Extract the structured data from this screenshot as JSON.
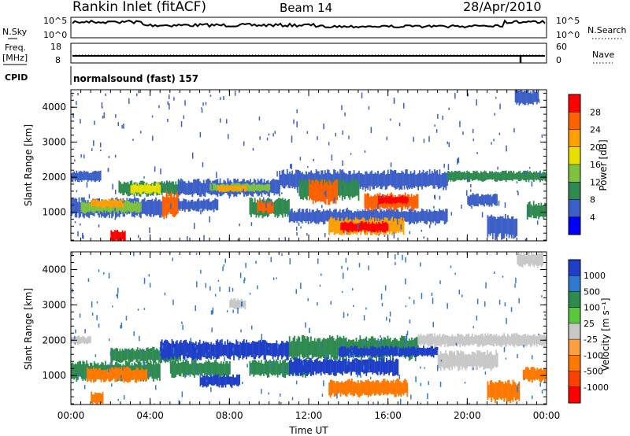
{
  "header": {
    "station": "Rankin Inlet (fitACF)",
    "beam": "Beam 14",
    "date": "28/Apr/2010"
  },
  "strips": {
    "nsky_label": "N.Sky",
    "nsearch_label": "N.Search",
    "nsky_top_tick": "10^5",
    "nsky_bottom_tick": "10^0",
    "freq_label_line1": "Freq.",
    "freq_label_line2": "[MHz]",
    "freq_ticks": [
      "18",
      "8"
    ],
    "nave_label": "Nave",
    "nave_ticks": [
      "60",
      "0"
    ],
    "cpid_label": "CPID",
    "cpid_text": "normalsound (fast) 157"
  },
  "chart_data": [
    {
      "type": "heatmap",
      "panel": "power",
      "ylabel": "Slant Range [km]",
      "xlabel": "",
      "ylim": [
        180,
        4500
      ],
      "yticks": [
        1000,
        2000,
        3000,
        4000
      ],
      "xlim_hours": [
        0,
        24
      ],
      "xticks": [
        "00:00",
        "04:00",
        "08:00",
        "12:00",
        "16:00",
        "20:00",
        "00:00"
      ],
      "colorbar": {
        "label": "Power [dB]",
        "ticks": [
          "28",
          "24",
          "20",
          "16",
          "12",
          "8",
          "4"
        ],
        "colors": [
          "#ff0000",
          "#ff6000",
          "#ff9f00",
          "#e8e000",
          "#7fc240",
          "#2f8a50",
          "#3c5fc8",
          "#0000ff"
        ]
      },
      "echo_regions": [
        {
          "t0": 0.0,
          "t1": 1.5,
          "r0": 1900,
          "r1": 2150,
          "color": "#3c5fc8"
        },
        {
          "t0": 0.0,
          "t1": 4.6,
          "r0": 900,
          "r1": 1350,
          "color": "#3c5fc8"
        },
        {
          "t0": 0.5,
          "t1": 3.5,
          "r0": 1000,
          "r1": 1300,
          "color": "#7fc240"
        },
        {
          "t0": 1.0,
          "t1": 2.6,
          "r0": 1150,
          "r1": 1350,
          "color": "#ff9f00"
        },
        {
          "t0": 2.4,
          "t1": 5.8,
          "r0": 1500,
          "r1": 1850,
          "color": "#2f8a50"
        },
        {
          "t0": 3.0,
          "t1": 4.5,
          "r0": 1550,
          "r1": 1800,
          "color": "#e8e000"
        },
        {
          "t0": 4.6,
          "t1": 5.4,
          "r0": 900,
          "r1": 1500,
          "color": "#ff6000"
        },
        {
          "t0": 5.4,
          "t1": 10.5,
          "r0": 1500,
          "r1": 1900,
          "color": "#3c5fc8"
        },
        {
          "t0": 5.4,
          "t1": 7.4,
          "r0": 1050,
          "r1": 1350,
          "color": "#3c5fc8"
        },
        {
          "t0": 7.0,
          "t1": 10.0,
          "r0": 1600,
          "r1": 1800,
          "color": "#7fc240"
        },
        {
          "t0": 7.4,
          "t1": 8.8,
          "r0": 1600,
          "r1": 1750,
          "color": "#ff9f00"
        },
        {
          "t0": 9.0,
          "t1": 11.0,
          "r0": 900,
          "r1": 1350,
          "color": "#2f8a50"
        },
        {
          "t0": 9.4,
          "t1": 10.2,
          "r0": 1000,
          "r1": 1300,
          "color": "#ff6000"
        },
        {
          "t0": 10.5,
          "t1": 19.0,
          "r0": 1700,
          "r1": 2150,
          "color": "#3c5fc8"
        },
        {
          "t0": 11.5,
          "t1": 14.5,
          "r0": 1400,
          "r1": 1900,
          "color": "#2f8a50"
        },
        {
          "t0": 12.0,
          "t1": 13.4,
          "r0": 1300,
          "r1": 1850,
          "color": "#ff6000"
        },
        {
          "t0": 11.0,
          "t1": 19.0,
          "r0": 700,
          "r1": 1050,
          "color": "#3c5fc8"
        },
        {
          "t0": 13.0,
          "t1": 16.8,
          "r0": 400,
          "r1": 800,
          "color": "#ff9f00"
        },
        {
          "t0": 13.6,
          "t1": 16.0,
          "r0": 450,
          "r1": 700,
          "color": "#ff0000"
        },
        {
          "t0": 14.8,
          "t1": 17.5,
          "r0": 1100,
          "r1": 1500,
          "color": "#ff6000"
        },
        {
          "t0": 15.5,
          "t1": 17.0,
          "r0": 1250,
          "r1": 1450,
          "color": "#ff0000"
        },
        {
          "t0": 19.0,
          "t1": 24.0,
          "r0": 1900,
          "r1": 2150,
          "color": "#2f8a50"
        },
        {
          "t0": 20.0,
          "t1": 21.5,
          "r0": 1200,
          "r1": 1500,
          "color": "#3c5fc8"
        },
        {
          "t0": 21.0,
          "t1": 22.5,
          "r0": 300,
          "r1": 900,
          "color": "#3c5fc8"
        },
        {
          "t0": 23.0,
          "t1": 24.0,
          "r0": 850,
          "r1": 1250,
          "color": "#2f8a50"
        },
        {
          "t0": 22.4,
          "t1": 23.6,
          "r0": 4100,
          "r1": 4450,
          "color": "#3c5fc8"
        },
        {
          "t0": 2.0,
          "t1": 2.7,
          "r0": 180,
          "r1": 450,
          "color": "#ff0000"
        }
      ]
    },
    {
      "type": "heatmap",
      "panel": "velocity",
      "ylabel": "Slant Range [km]",
      "xlabel": "Time UT",
      "ylim": [
        180,
        4500
      ],
      "yticks": [
        1000,
        2000,
        3000,
        4000
      ],
      "xlim_hours": [
        0,
        24
      ],
      "xticks": [
        "00:00",
        "04:00",
        "08:00",
        "12:00",
        "16:00",
        "20:00",
        "00:00"
      ],
      "colorbar": {
        "label": "Velocity [m s⁻¹]",
        "ticks": [
          "1000",
          "500",
          "100",
          "25",
          "-25",
          "-100",
          "-500",
          "-1000"
        ],
        "colors": [
          "#1f3fc8",
          "#2f7ad0",
          "#2f8a50",
          "#5ac83c",
          "#c8c8c8",
          "#ffa040",
          "#ff7800",
          "#ff4000",
          "#ff0000"
        ]
      },
      "echo_regions": [
        {
          "t0": 0.0,
          "t1": 1.0,
          "r0": 1900,
          "r1": 2100,
          "color": "#c8c8c8"
        },
        {
          "t0": 0.0,
          "t1": 4.5,
          "r0": 900,
          "r1": 1350,
          "color": "#2f8a50"
        },
        {
          "t0": 0.8,
          "t1": 3.8,
          "r0": 850,
          "r1": 1200,
          "color": "#ff7800"
        },
        {
          "t0": 2.0,
          "t1": 5.5,
          "r0": 1400,
          "r1": 1750,
          "color": "#2f8a50"
        },
        {
          "t0": 4.5,
          "t1": 11.0,
          "r0": 1500,
          "r1": 1950,
          "color": "#1f3fc8"
        },
        {
          "t0": 5.0,
          "t1": 8.0,
          "r0": 1000,
          "r1": 1400,
          "color": "#2f8a50"
        },
        {
          "t0": 6.5,
          "t1": 8.5,
          "r0": 700,
          "r1": 1000,
          "color": "#1f3fc8"
        },
        {
          "t0": 9.0,
          "t1": 12.0,
          "r0": 1000,
          "r1": 1400,
          "color": "#2f8a50"
        },
        {
          "t0": 11.0,
          "t1": 17.5,
          "r0": 1500,
          "r1": 2050,
          "color": "#2f8a50"
        },
        {
          "t0": 13.5,
          "t1": 18.5,
          "r0": 1550,
          "r1": 1800,
          "color": "#1f3fc8"
        },
        {
          "t0": 11.0,
          "t1": 16.5,
          "r0": 1050,
          "r1": 1450,
          "color": "#1f3fc8"
        },
        {
          "t0": 13.0,
          "t1": 17.0,
          "r0": 450,
          "r1": 850,
          "color": "#ff7800"
        },
        {
          "t0": 17.5,
          "t1": 24.0,
          "r0": 1850,
          "r1": 2150,
          "color": "#c8c8c8"
        },
        {
          "t0": 18.5,
          "t1": 21.5,
          "r0": 1200,
          "r1": 1650,
          "color": "#c8c8c8"
        },
        {
          "t0": 21.0,
          "t1": 22.6,
          "r0": 300,
          "r1": 800,
          "color": "#ff7800"
        },
        {
          "t0": 22.8,
          "t1": 24.0,
          "r0": 850,
          "r1": 1200,
          "color": "#ff7800"
        },
        {
          "t0": 22.5,
          "t1": 23.8,
          "r0": 4100,
          "r1": 4450,
          "color": "#c8c8c8"
        },
        {
          "t0": 8.0,
          "t1": 8.8,
          "r0": 2900,
          "r1": 3150,
          "color": "#c8c8c8"
        },
        {
          "t0": 1.0,
          "t1": 1.6,
          "r0": 200,
          "r1": 500,
          "color": "#ff7800"
        }
      ]
    }
  ]
}
